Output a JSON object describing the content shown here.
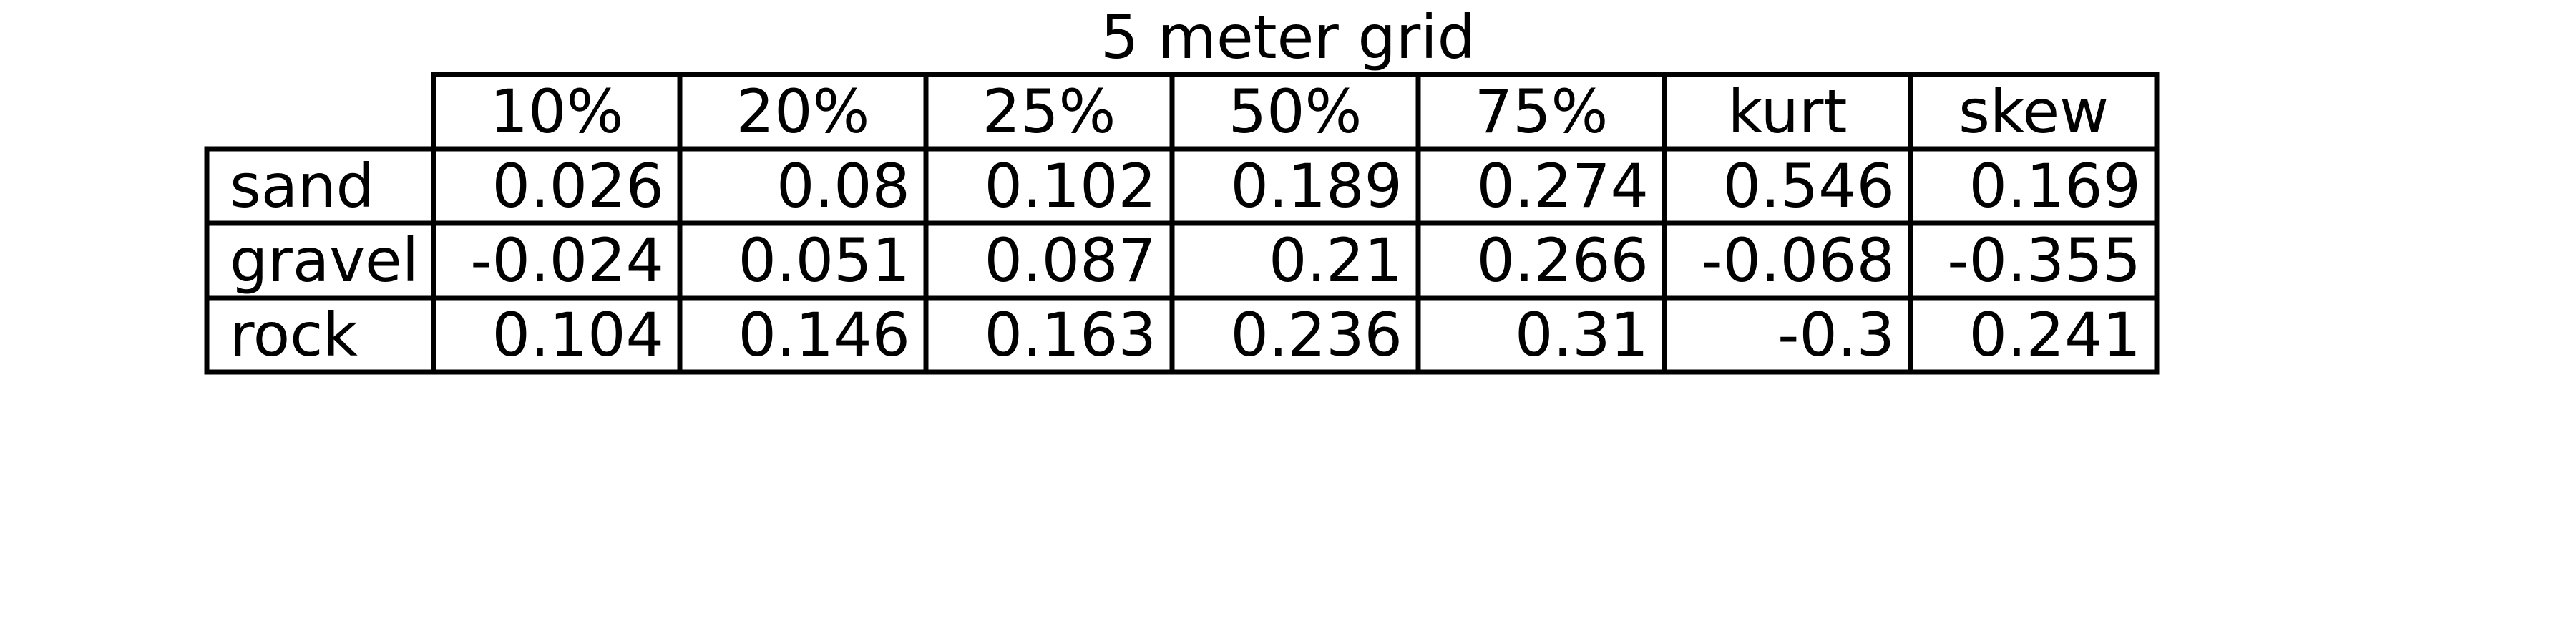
{
  "chart_data": {
    "type": "table",
    "title": "5 meter grid",
    "columns": [
      "10%",
      "20%",
      "25%",
      "50%",
      "75%",
      "kurt",
      "skew"
    ],
    "rows": [
      {
        "label": "sand",
        "values": [
          "0.026",
          "0.08",
          "0.102",
          "0.189",
          "0.274",
          "0.546",
          "0.169"
        ]
      },
      {
        "label": "gravel",
        "values": [
          "-0.024",
          "0.051",
          "0.087",
          "0.21",
          "0.266",
          "-0.068",
          "-0.355"
        ]
      },
      {
        "label": "rock",
        "values": [
          "0.104",
          "0.146",
          "0.163",
          "0.236",
          "0.31",
          "-0.3",
          "0.241"
        ]
      }
    ]
  }
}
